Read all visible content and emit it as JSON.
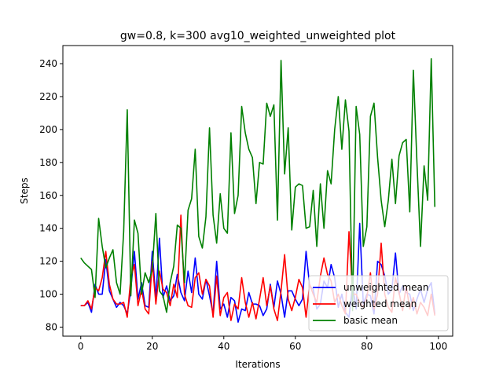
{
  "chart_data": {
    "type": "line",
    "title": "gw=0.8, k=300 avg10_weighted_unweighted plot",
    "xlabel": "Iterations",
    "ylabel": "Steps",
    "xlim": [
      -5,
      104
    ],
    "ylim": [
      74.5,
      251
    ],
    "xticks": [
      0,
      20,
      40,
      60,
      80,
      100
    ],
    "yticks": [
      80,
      100,
      120,
      140,
      160,
      180,
      200,
      220,
      240
    ],
    "grid": false,
    "legend_position": "lower-right",
    "series": [
      {
        "name": "unweighted mean",
        "color": "#0000ff",
        "x": [
          0,
          1,
          2,
          3,
          4,
          5,
          6,
          7,
          8,
          9,
          10,
          11,
          12,
          13,
          14,
          15,
          16,
          17,
          18,
          19,
          20,
          21,
          22,
          23,
          24,
          25,
          26,
          27,
          28,
          29,
          30,
          31,
          32,
          33,
          34,
          35,
          36,
          37,
          38,
          39,
          40,
          41,
          42,
          43,
          44,
          45,
          46,
          47,
          48,
          49,
          50,
          51,
          52,
          53,
          54,
          55,
          56,
          57,
          58,
          59,
          60,
          61,
          62,
          63,
          64,
          65,
          66,
          67,
          68,
          69,
          70,
          71,
          72,
          73,
          74,
          75,
          76,
          77,
          78,
          79,
          80,
          81,
          82,
          83,
          84,
          85,
          86,
          87,
          88,
          89,
          90,
          91,
          92,
          93,
          94,
          95,
          96,
          97,
          98,
          99
        ],
        "values": [
          93,
          93,
          95,
          89,
          106,
          100,
          100,
          121,
          102,
          97,
          92,
          95,
          93,
          88,
          103,
          126,
          97,
          107,
          93,
          92,
          126,
          97,
          134,
          98,
          105,
          96,
          99,
          112,
          101,
          96,
          114,
          101,
          122,
          100,
          97,
          109,
          99,
          88,
          120,
          91,
          94,
          86,
          98,
          96,
          83,
          91,
          90,
          101,
          94,
          94,
          93,
          87,
          91,
          106,
          92,
          108,
          100,
          86,
          102,
          102,
          97,
          93,
          97,
          126,
          105,
          103,
          91,
          94,
          108,
          104,
          118,
          110,
          92,
          100,
          89,
          86,
          105,
          91,
          143,
          94,
          100,
          99,
          88,
          120,
          118,
          111,
          100,
          103,
          125,
          100,
          105,
          101,
          100,
          90,
          97,
          103,
          95,
          103,
          107,
          88
        ]
      },
      {
        "name": "weighted mean",
        "color": "#ff0000",
        "x": [
          0,
          1,
          2,
          3,
          4,
          5,
          6,
          7,
          8,
          9,
          10,
          11,
          12,
          13,
          14,
          15,
          16,
          17,
          18,
          19,
          20,
          21,
          22,
          23,
          24,
          25,
          26,
          27,
          28,
          29,
          30,
          31,
          32,
          33,
          34,
          35,
          36,
          37,
          38,
          39,
          40,
          41,
          42,
          43,
          44,
          45,
          46,
          47,
          48,
          49,
          50,
          51,
          52,
          53,
          54,
          55,
          56,
          57,
          58,
          59,
          60,
          61,
          62,
          63,
          64,
          65,
          66,
          67,
          68,
          69,
          70,
          71,
          72,
          73,
          74,
          75,
          76,
          77,
          78,
          79,
          80,
          81,
          82,
          83,
          84,
          85,
          86,
          87,
          88,
          89,
          90,
          91,
          92,
          93,
          94,
          95,
          96,
          97,
          98,
          99
        ],
        "values": [
          93,
          93,
          96,
          91,
          104,
          102,
          110,
          126,
          106,
          97,
          94,
          94,
          95,
          86,
          110,
          118,
          93,
          103,
          91,
          88,
          120,
          94,
          114,
          103,
          101,
          93,
          106,
          98,
          148,
          100,
          93,
          92,
          110,
          113,
          100,
          109,
          105,
          86,
          111,
          87,
          98,
          101,
          84,
          94,
          91,
          110,
          95,
          86,
          95,
          85,
          97,
          110,
          93,
          105,
          91,
          84,
          102,
          124,
          97,
          90,
          98,
          109,
          104,
          86,
          106,
          100,
          95,
          111,
          122,
          112,
          108,
          95,
          100,
          93,
          88,
          138,
          100,
          100,
          95,
          92,
          98,
          113,
          91,
          100,
          131,
          100,
          92,
          89,
          110,
          101,
          90,
          105,
          91,
          98,
          88,
          95,
          92,
          87,
          100,
          87
        ],
        "x_override": [
          0,
          1,
          2,
          3,
          4,
          5,
          6,
          7,
          8,
          9,
          10,
          11,
          12,
          13,
          14,
          15,
          16,
          17,
          18,
          19,
          20,
          21,
          22,
          23,
          24,
          25,
          26,
          27,
          28,
          29,
          30,
          31,
          32,
          33,
          34,
          35,
          36,
          37,
          38,
          39,
          40,
          41,
          42,
          43,
          44,
          45,
          46,
          47,
          48,
          49,
          50,
          51,
          52,
          53,
          54,
          55,
          56,
          57,
          58,
          59,
          60,
          61,
          62,
          63,
          64,
          65,
          66,
          67,
          68,
          69,
          70,
          71,
          72,
          73,
          74,
          75,
          76,
          77,
          78,
          79,
          80,
          81,
          82,
          83,
          84,
          85,
          86,
          87,
          88,
          89,
          90,
          91,
          92,
          93,
          94,
          95,
          96,
          97,
          98,
          99
        ]
      },
      {
        "name": "basic mean",
        "color": "#008000",
        "x": [
          0,
          1,
          2,
          3,
          4,
          5,
          6,
          7,
          8,
          9,
          10,
          11,
          12,
          13,
          14,
          15,
          16,
          17,
          18,
          19,
          20,
          21,
          22,
          23,
          24,
          25,
          26,
          27,
          28,
          29,
          30,
          31,
          32,
          33,
          34,
          35,
          36,
          37,
          38,
          39,
          40,
          41,
          42,
          43,
          44,
          45,
          46,
          47,
          48,
          49,
          50,
          51,
          52,
          53,
          54,
          55,
          56,
          57,
          58,
          59,
          60,
          61,
          62,
          63,
          64,
          65,
          66,
          67,
          68,
          69,
          70,
          71,
          72,
          73,
          74,
          75,
          76,
          77,
          78,
          79,
          80,
          81,
          82,
          83,
          84,
          85,
          86,
          87,
          88,
          89,
          90,
          91,
          92,
          93,
          94,
          95,
          96,
          97,
          98,
          99
        ],
        "values": [
          122,
          119,
          117,
          115,
          98,
          146,
          129,
          116,
          122,
          127,
          107,
          100,
          138,
          212,
          99,
          145,
          137,
          100,
          113,
          107,
          115,
          149,
          102,
          99,
          89,
          107,
          117,
          142,
          140,
          107,
          151,
          158,
          188,
          135,
          128,
          147,
          201,
          148,
          131,
          161,
          140,
          137,
          198,
          149,
          160,
          214,
          198,
          188,
          183,
          155,
          180,
          179,
          216,
          208,
          215,
          145,
          242,
          173,
          201,
          139,
          165,
          167,
          166,
          140,
          141,
          163,
          129,
          167,
          140,
          175,
          167,
          200,
          220,
          188,
          218,
          199,
          90,
          214,
          197,
          129,
          141,
          208,
          216,
          183,
          157,
          141,
          157,
          182,
          155,
          184,
          192,
          194,
          150,
          236,
          180,
          129,
          178,
          157,
          243,
          153
        ]
      }
    ]
  }
}
